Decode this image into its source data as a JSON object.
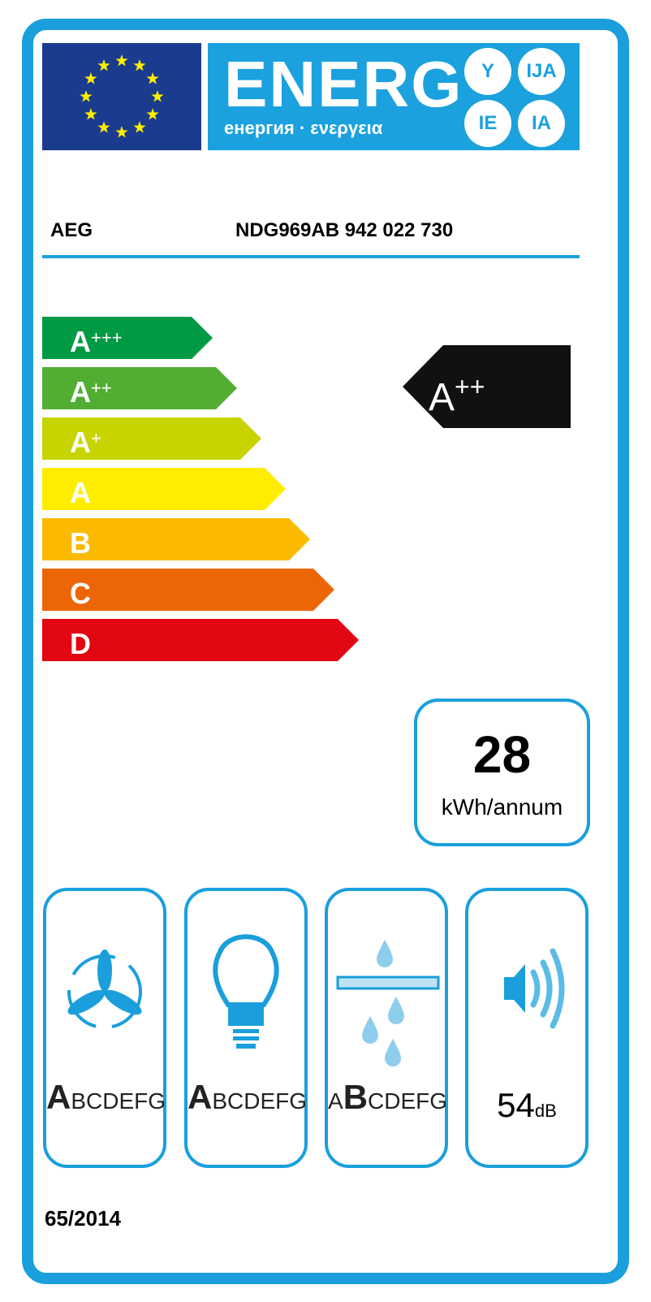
{
  "header": {
    "title": "ENERG",
    "subtitle": "енергия · ενεργεια",
    "suffixes": [
      "Y",
      "IJA",
      "IE",
      "IA"
    ],
    "flag_color": "#1b3b8e",
    "band_color": "#1ba1de"
  },
  "supplier": "AEG",
  "model": "NDG969AB  942 022 730",
  "classes": [
    {
      "letter": "A",
      "plus": "+++",
      "color": "#009a44"
    },
    {
      "letter": "A",
      "plus": "++",
      "color": "#52ae32"
    },
    {
      "letter": "A",
      "plus": "+",
      "color": "#c8d400"
    },
    {
      "letter": "A",
      "plus": "",
      "color": "#ffed00"
    },
    {
      "letter": "B",
      "plus": "",
      "color": "#fbba00"
    },
    {
      "letter": "C",
      "plus": "",
      "color": "#ec6608"
    },
    {
      "letter": "D",
      "plus": "",
      "color": "#e30613"
    }
  ],
  "rating": {
    "letter": "A",
    "plus": "++"
  },
  "consumption": {
    "value": "28",
    "unit": "kWh/annum"
  },
  "pictograms": [
    {
      "icon": "fan-icon",
      "selected": "A",
      "rest": "BCDEFG"
    },
    {
      "icon": "lightbulb-icon",
      "selected": "A",
      "rest": "BCDEFG"
    },
    {
      "icon": "grease-filter-icon",
      "pre": "A",
      "selected": "B",
      "rest": "CDEFG"
    }
  ],
  "noise": {
    "value": "54",
    "unit": "dB"
  },
  "regulation": "65/2014"
}
